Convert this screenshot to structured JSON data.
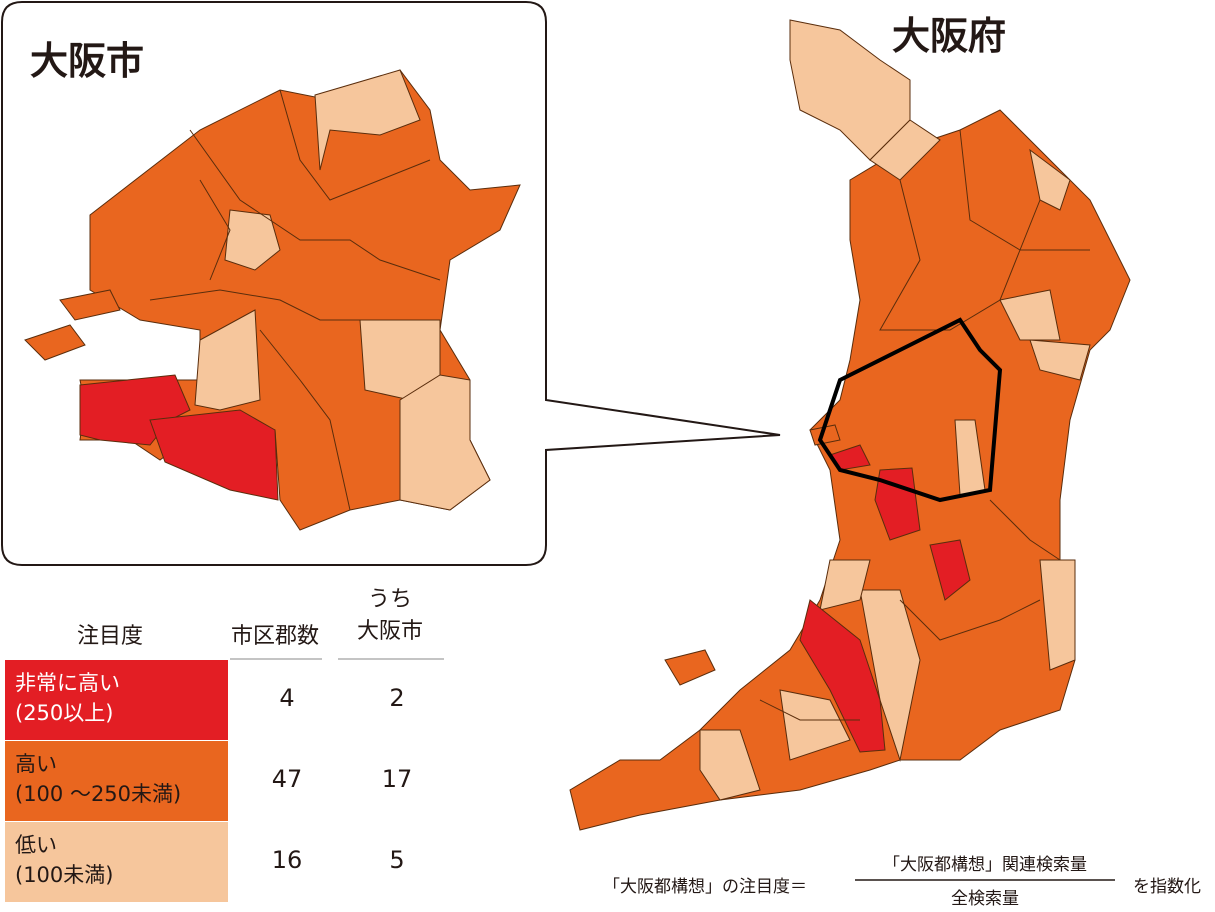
{
  "inset_title": "大阪市",
  "map_title": "大阪府",
  "table": {
    "headers": [
      "注目度",
      "市区郡数",
      [
        "うち",
        "大阪市"
      ]
    ],
    "rows": [
      {
        "label": [
          "非常に高い",
          "(250以上)"
        ],
        "count": 4,
        "osaka_city": 2
      },
      {
        "label": [
          "高い",
          "(100 ～250未満)"
        ],
        "count": 47,
        "osaka_city": 17
      },
      {
        "label": [
          "低い",
          "(100未満)"
        ],
        "count": 16,
        "osaka_city": 5
      }
    ]
  },
  "formula": {
    "lhs": "「大阪都構想」の注目度＝",
    "numerator": "「大阪都構想」関連検索量",
    "denominator": "全検索量",
    "suffix": "を指数化"
  }
}
